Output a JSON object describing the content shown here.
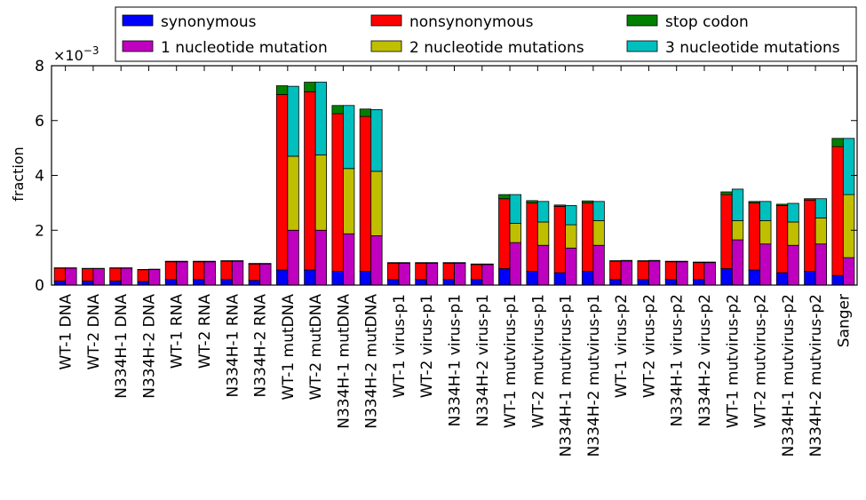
{
  "chart_data": {
    "type": "bar",
    "stacked_groups": true,
    "ylabel": "fraction",
    "y_multiplier": "×10",
    "y_multiplier_exponent": "−3",
    "ylim": [
      0,
      8
    ],
    "yticks": [
      "0",
      "2",
      "4",
      "6",
      "8"
    ],
    "grid": false,
    "legend_placement": "top",
    "categories": [
      "WT-1 DNA",
      "WT-2 DNA",
      "N334H-1 DNA",
      "N334H-2 DNA",
      "WT-1 RNA",
      "WT-2 RNA",
      "N334H-1 RNA",
      "N334H-2 RNA",
      "WT-1 mutDNA",
      "WT-2 mutDNA",
      "N334H-1 mutDNA",
      "N334H-2 mutDNA",
      "WT-1 virus-p1",
      "WT-2 virus-p1",
      "N334H-1 virus-p1",
      "N334H-2 virus-p1",
      "WT-1 mutvirus-p1",
      "WT-2 mutvirus-p1",
      "N334H-1 mutvirus-p1",
      "N334H-2 mutvirus-p1",
      "WT-1 virus-p2",
      "WT-2 virus-p2",
      "N334H-1 virus-p2",
      "N334H-2 virus-p2",
      "WT-1 mutvirus-p2",
      "WT-2 mutvirus-p2",
      "N334H-1 mutvirus-p2",
      "N334H-2 mutvirus-p2",
      "Sanger"
    ],
    "stack_a": [
      {
        "name": "synonymous",
        "color": "#0000ff",
        "values": [
          0.15,
          0.15,
          0.15,
          0.13,
          0.2,
          0.2,
          0.2,
          0.17,
          0.55,
          0.55,
          0.5,
          0.5,
          0.2,
          0.2,
          0.2,
          0.2,
          0.6,
          0.5,
          0.45,
          0.5,
          0.2,
          0.2,
          0.2,
          0.2,
          0.6,
          0.55,
          0.45,
          0.5,
          0.35
        ]
      },
      {
        "name": "nonsynonymous",
        "color": "#ff0000",
        "values": [
          0.47,
          0.45,
          0.47,
          0.43,
          0.65,
          0.65,
          0.67,
          0.6,
          6.4,
          6.5,
          5.75,
          5.65,
          0.6,
          0.6,
          0.6,
          0.55,
          2.55,
          2.5,
          2.42,
          2.5,
          0.67,
          0.67,
          0.65,
          0.62,
          2.7,
          2.45,
          2.45,
          2.6,
          4.7
        ]
      },
      {
        "name": "stop codon",
        "color": "#008000",
        "values": [
          0.01,
          0.01,
          0.01,
          0.01,
          0.02,
          0.02,
          0.02,
          0.02,
          0.32,
          0.35,
          0.3,
          0.27,
          0.02,
          0.02,
          0.02,
          0.02,
          0.15,
          0.08,
          0.05,
          0.07,
          0.02,
          0.02,
          0.02,
          0.02,
          0.1,
          0.05,
          0.05,
          0.05,
          0.3
        ]
      }
    ],
    "stack_b": [
      {
        "name": "1 nucleotide mutation",
        "color": "#bf00bf",
        "values": [
          0.62,
          0.6,
          0.62,
          0.57,
          0.85,
          0.85,
          0.87,
          0.77,
          2.0,
          2.0,
          1.87,
          1.8,
          0.8,
          0.8,
          0.8,
          0.75,
          1.55,
          1.45,
          1.35,
          1.45,
          0.88,
          0.88,
          0.85,
          0.82,
          1.65,
          1.5,
          1.45,
          1.5,
          1.0
        ]
      },
      {
        "name": "2 nucleotide mutations",
        "color": "#bfbf00",
        "values": [
          0.0,
          0.0,
          0.0,
          0.0,
          0.0,
          0.0,
          0.0,
          0.0,
          2.7,
          2.75,
          2.38,
          2.35,
          0.0,
          0.0,
          0.0,
          0.0,
          0.7,
          0.85,
          0.85,
          0.9,
          0.0,
          0.0,
          0.0,
          0.0,
          0.7,
          0.85,
          0.85,
          0.95,
          2.3
        ]
      },
      {
        "name": "3 nucleotide mutations",
        "color": "#00bfbf",
        "values": [
          0.01,
          0.01,
          0.01,
          0.01,
          0.02,
          0.02,
          0.02,
          0.02,
          2.55,
          2.65,
          2.3,
          2.25,
          0.02,
          0.02,
          0.02,
          0.02,
          1.05,
          0.75,
          0.7,
          0.7,
          0.02,
          0.02,
          0.02,
          0.02,
          1.15,
          0.7,
          0.68,
          0.7,
          2.05
        ]
      }
    ],
    "legend": {
      "items": [
        {
          "label": "synonymous",
          "color": "#0000ff"
        },
        {
          "label": "nonsynonymous",
          "color": "#ff0000"
        },
        {
          "label": "stop codon",
          "color": "#008000"
        },
        {
          "label": "1 nucleotide mutation",
          "color": "#bf00bf"
        },
        {
          "label": "2 nucleotide mutations",
          "color": "#bfbf00"
        },
        {
          "label": "3 nucleotide mutations",
          "color": "#00bfbf"
        }
      ]
    }
  }
}
